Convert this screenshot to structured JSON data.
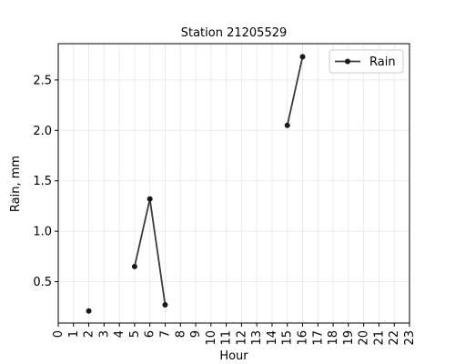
{
  "chart_data": {
    "type": "line",
    "title": "Station 21205529",
    "xlabel": "Hour",
    "ylabel": "Rain, mm",
    "x_ticks": [
      "0",
      "1",
      "2",
      "3",
      "4",
      "5",
      "6",
      "7",
      "8",
      "9",
      "10",
      "11",
      "12",
      "13",
      "14",
      "15",
      "16",
      "17",
      "18",
      "19",
      "20",
      "21",
      "22",
      "23"
    ],
    "y_ticks": [
      "0.5",
      "1.0",
      "1.5",
      "2.0",
      "2.5"
    ],
    "xlim": [
      0,
      23
    ],
    "ylim": [
      0.09,
      2.86
    ],
    "grid": true,
    "legend_position": "top-right",
    "series": [
      {
        "name": "Rain",
        "color": "#3a3a3a",
        "marker_color": "#1a1a1a",
        "segments": [
          [
            {
              "x": 2,
              "y": 0.21
            }
          ],
          [
            {
              "x": 5,
              "y": 0.65
            },
            {
              "x": 6,
              "y": 1.32
            },
            {
              "x": 7,
              "y": 0.27
            }
          ],
          [
            {
              "x": 15,
              "y": 2.05
            },
            {
              "x": 16,
              "y": 2.73
            }
          ]
        ]
      }
    ]
  }
}
